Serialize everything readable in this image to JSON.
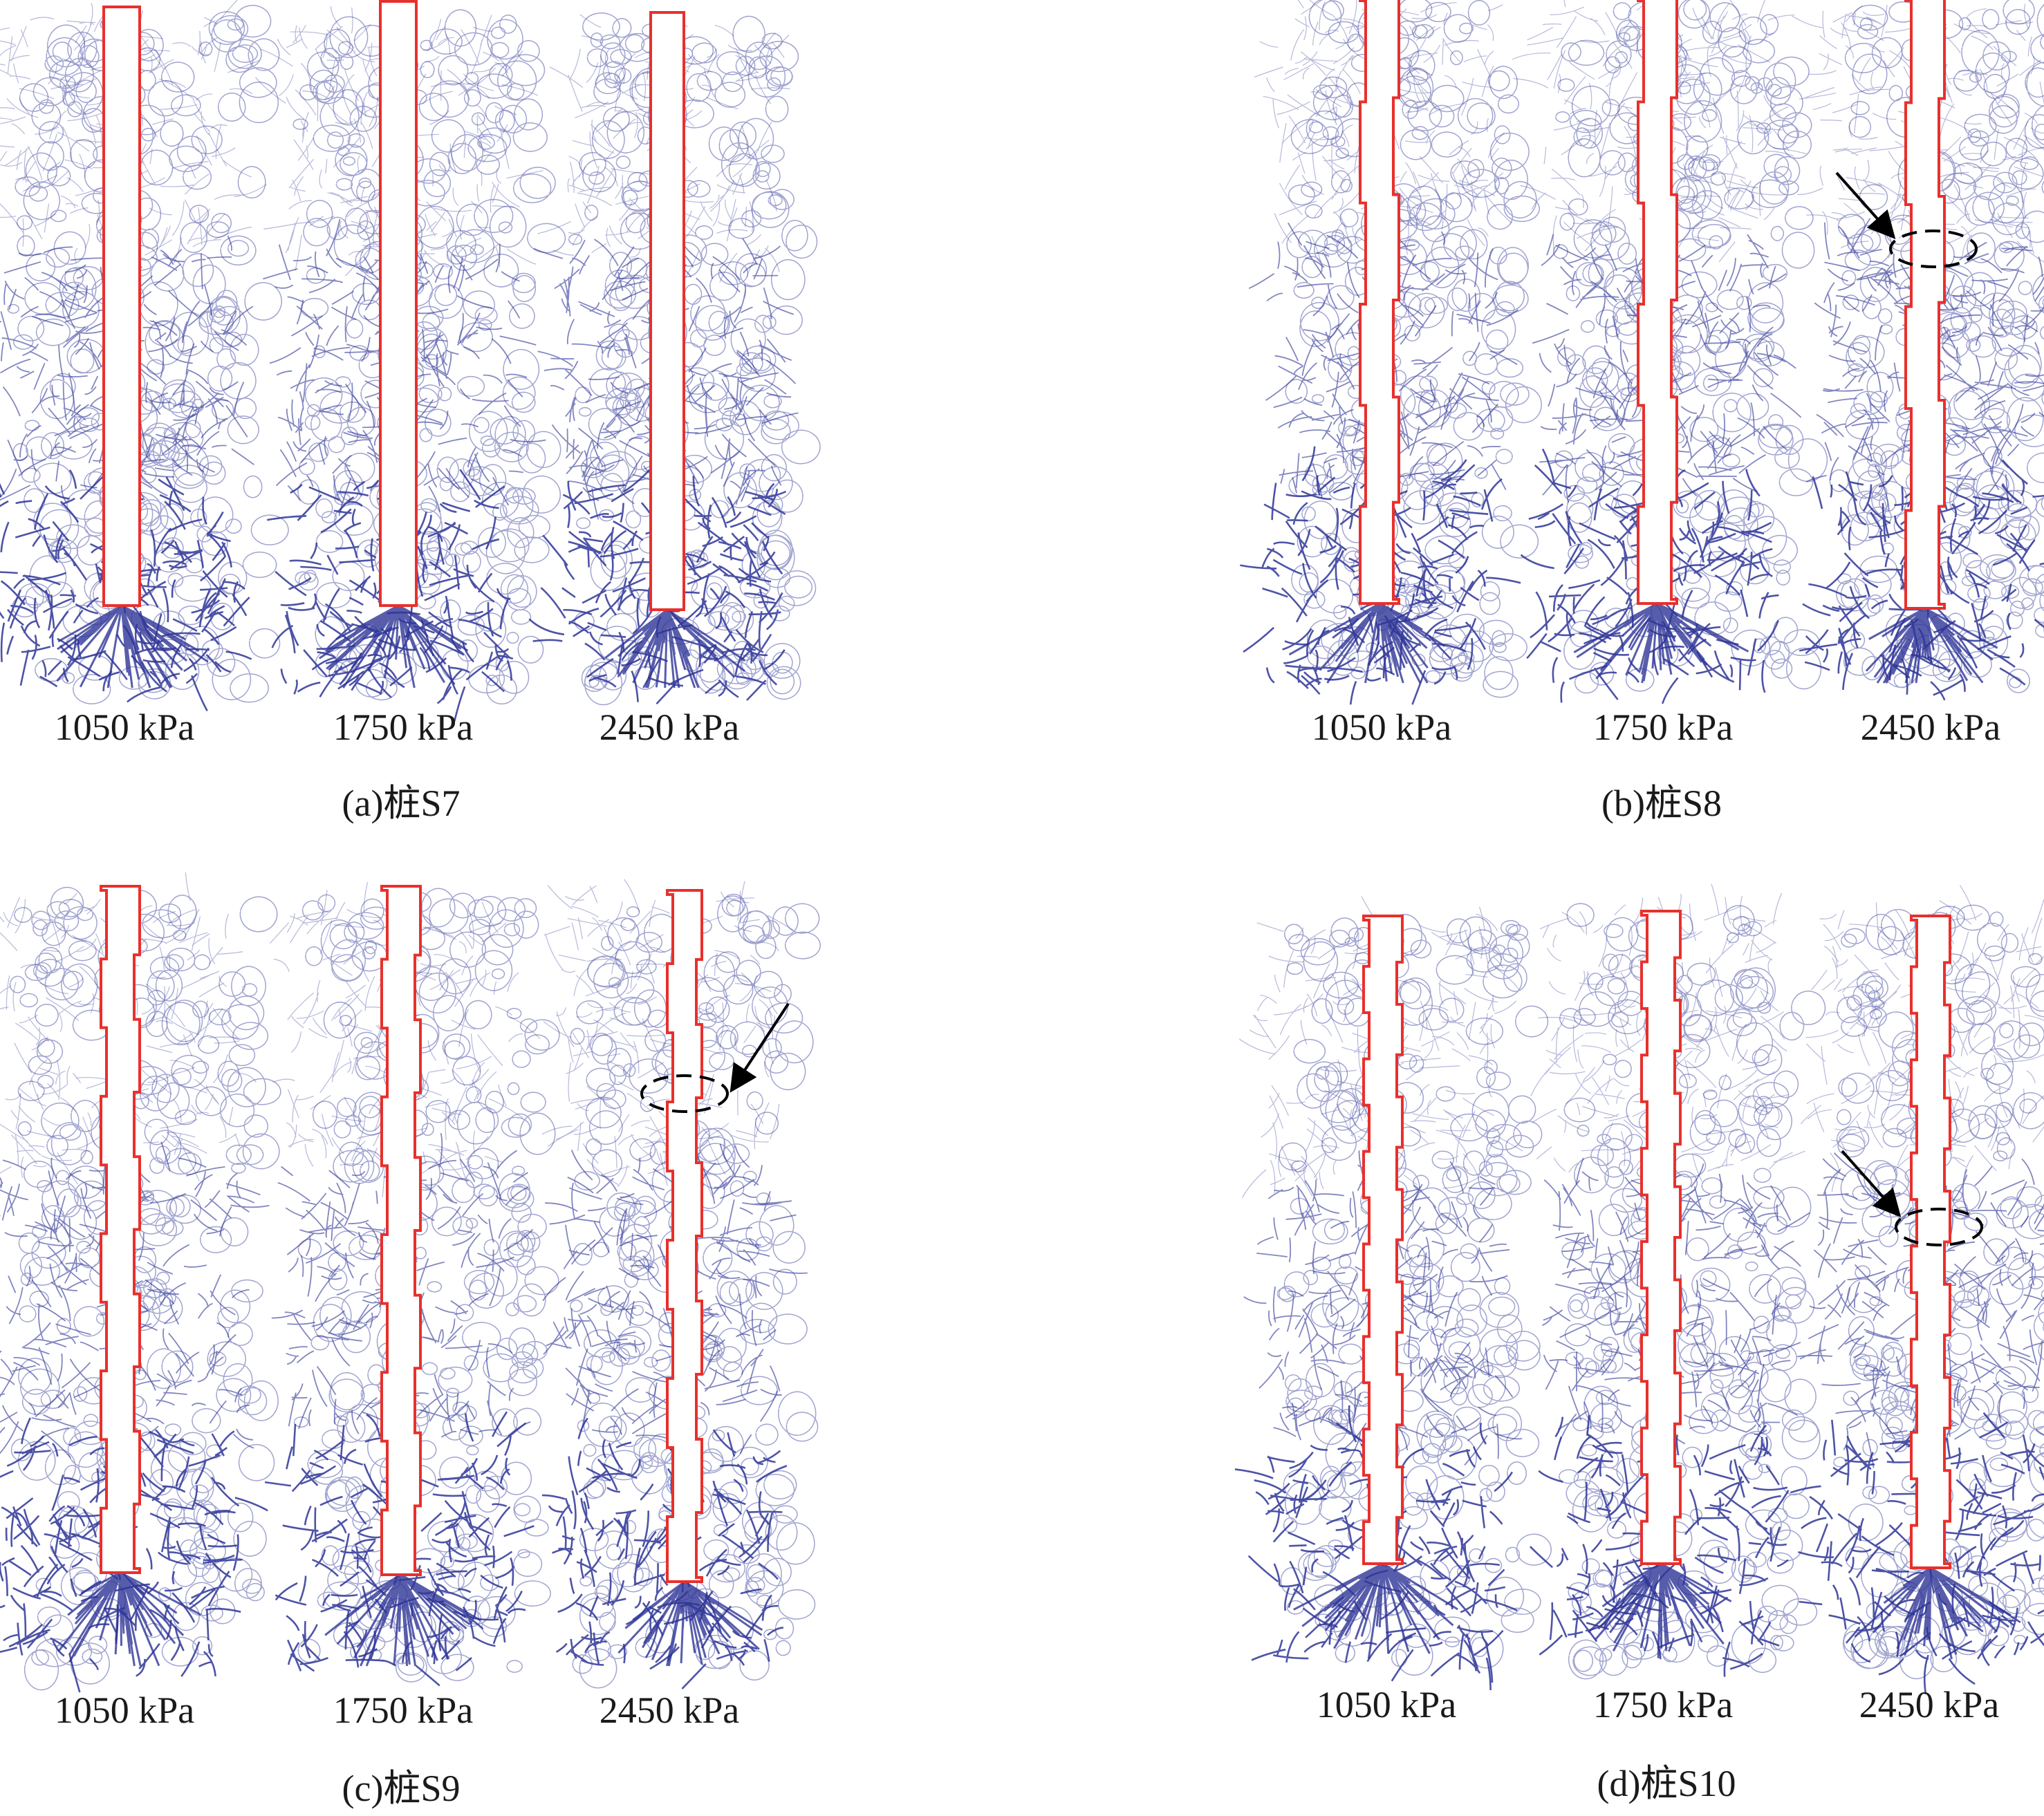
{
  "colors": {
    "pile_outline": "#e8302c",
    "force_chain": "#2e3596",
    "annotation": "#000000",
    "background": "#ffffff"
  },
  "groups": [
    {
      "id": "S7",
      "caption": "(a)桩S7",
      "pile_shape": "straight",
      "panels": [
        {
          "pressure_label": "1050 kPa",
          "highlight": false
        },
        {
          "pressure_label": "1750 kPa",
          "highlight": false
        },
        {
          "pressure_label": "2450 kPa",
          "highlight": false
        }
      ]
    },
    {
      "id": "S8",
      "caption": "(b)桩S8",
      "pile_shape": "stepped",
      "panels": [
        {
          "pressure_label": "1050 kPa",
          "highlight": false
        },
        {
          "pressure_label": "1750 kPa",
          "highlight": false
        },
        {
          "pressure_label": "2450 kPa",
          "highlight": true
        }
      ]
    },
    {
      "id": "S9",
      "caption": "(c)桩S9",
      "pile_shape": "stepped",
      "panels": [
        {
          "pressure_label": "1050 kPa",
          "highlight": false
        },
        {
          "pressure_label": "1750 kPa",
          "highlight": false
        },
        {
          "pressure_label": "2450 kPa",
          "highlight": true
        }
      ]
    },
    {
      "id": "S10",
      "caption": "(d)桩S10",
      "pile_shape": "stepped",
      "panels": [
        {
          "pressure_label": "1050 kPa",
          "highlight": false
        },
        {
          "pressure_label": "1750 kPa",
          "highlight": false
        },
        {
          "pressure_label": "2450 kPa",
          "highlight": true
        }
      ]
    }
  ]
}
